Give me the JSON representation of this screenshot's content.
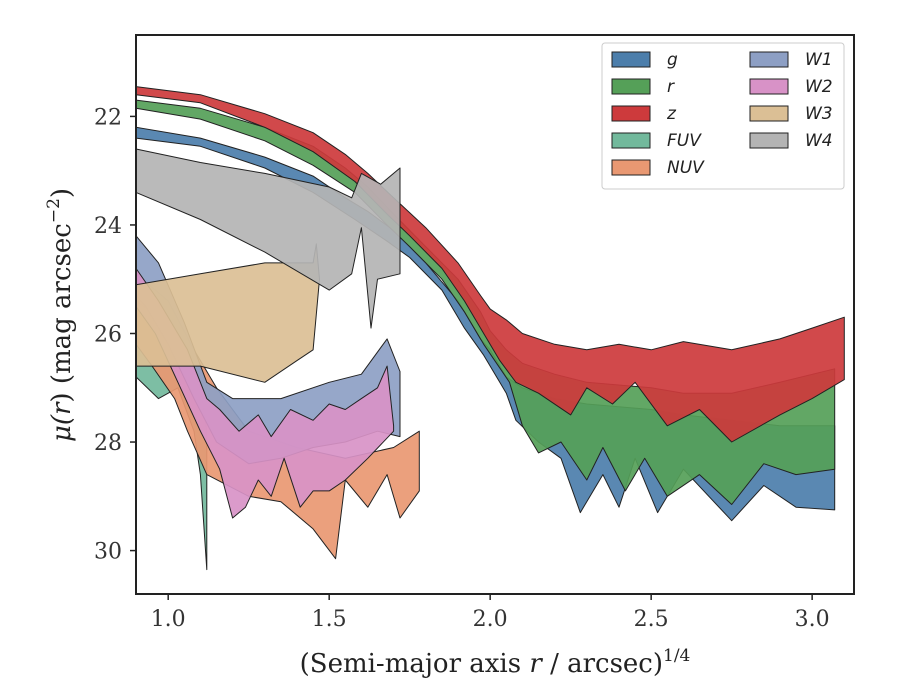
{
  "chart_data": {
    "type": "area",
    "xlabel": "(Semi-major axis",
    "xlabel_var": "r",
    "xlabel_unit": "/ arcsec)",
    "xlabel_power": "1/4",
    "ylabel": "μ(r) (mag arcsec⁻²)",
    "ylabel_parts": {
      "mu": "μ(",
      "var": "r",
      "rest": ") (mag arcsec",
      "sup": "−2",
      "close": ")"
    },
    "xlim": [
      0.9,
      3.13
    ],
    "ylim": [
      30.8,
      20.5
    ],
    "y_inverted": true,
    "xticks": [
      1.0,
      1.5,
      2.0,
      2.5,
      3.0
    ],
    "xtick_labels": [
      "1.0",
      "1.5",
      "2.0",
      "2.5",
      "3.0"
    ],
    "yticks": [
      22,
      24,
      26,
      28,
      30
    ],
    "ytick_labels": [
      "22",
      "24",
      "26",
      "28",
      "30"
    ],
    "grid": false,
    "legend_position": "top-right",
    "legend_columns": 2,
    "series": [
      {
        "name": "g",
        "color": "#4c7eab",
        "upper": [
          [
            0.9,
            22.2
          ],
          [
            1.1,
            22.4
          ],
          [
            1.3,
            22.75
          ],
          [
            1.45,
            23.1
          ],
          [
            1.55,
            23.5
          ],
          [
            1.62,
            23.75
          ],
          [
            1.7,
            24.1
          ],
          [
            1.8,
            24.7
          ],
          [
            1.9,
            25.4
          ],
          [
            1.97,
            26.1
          ],
          [
            2.0,
            26.3
          ],
          [
            2.05,
            26.8
          ],
          [
            2.1,
            27.0
          ],
          [
            2.2,
            27.2
          ],
          [
            2.3,
            27.3
          ],
          [
            2.5,
            27.4
          ],
          [
            2.6,
            27.5
          ],
          [
            2.75,
            27.6
          ],
          [
            2.9,
            27.7
          ],
          [
            3.07,
            27.7
          ]
        ],
        "lower": [
          [
            3.07,
            29.25
          ],
          [
            2.95,
            29.2
          ],
          [
            2.85,
            28.8
          ],
          [
            2.75,
            29.45
          ],
          [
            2.6,
            28.5
          ],
          [
            2.52,
            29.3
          ],
          [
            2.45,
            28.3
          ],
          [
            2.4,
            29.2
          ],
          [
            2.35,
            28.6
          ],
          [
            2.28,
            29.3
          ],
          [
            2.22,
            28.3
          ],
          [
            2.15,
            28.0
          ],
          [
            2.08,
            27.6
          ],
          [
            2.05,
            27.1
          ],
          [
            1.98,
            26.4
          ],
          [
            1.92,
            25.9
          ],
          [
            1.85,
            25.2
          ],
          [
            1.75,
            24.6
          ],
          [
            1.68,
            24.3
          ],
          [
            1.58,
            23.9
          ],
          [
            1.45,
            23.4
          ],
          [
            1.3,
            22.95
          ],
          [
            1.1,
            22.55
          ],
          [
            0.9,
            22.4
          ]
        ]
      },
      {
        "name": "r",
        "color": "#55a058",
        "upper": [
          [
            0.9,
            21.7
          ],
          [
            1.1,
            21.85
          ],
          [
            1.3,
            22.2
          ],
          [
            1.45,
            22.55
          ],
          [
            1.55,
            22.95
          ],
          [
            1.62,
            23.3
          ],
          [
            1.7,
            23.8
          ],
          [
            1.8,
            24.4
          ],
          [
            1.9,
            25.0
          ],
          [
            1.97,
            25.6
          ],
          [
            2.0,
            25.95
          ],
          [
            2.05,
            26.3
          ],
          [
            2.1,
            26.55
          ],
          [
            2.2,
            26.75
          ],
          [
            2.3,
            26.9
          ],
          [
            2.5,
            27.0
          ],
          [
            2.6,
            27.1
          ],
          [
            2.75,
            27.1
          ],
          [
            2.9,
            26.9
          ],
          [
            3.07,
            26.65
          ]
        ],
        "lower": [
          [
            3.07,
            28.5
          ],
          [
            2.95,
            28.6
          ],
          [
            2.85,
            28.4
          ],
          [
            2.75,
            29.15
          ],
          [
            2.65,
            28.6
          ],
          [
            2.55,
            29.0
          ],
          [
            2.48,
            28.3
          ],
          [
            2.42,
            28.9
          ],
          [
            2.35,
            28.1
          ],
          [
            2.3,
            28.7
          ],
          [
            2.22,
            28.0
          ],
          [
            2.15,
            28.2
          ],
          [
            2.1,
            27.7
          ],
          [
            2.06,
            26.9
          ],
          [
            1.98,
            26.2
          ],
          [
            1.92,
            25.6
          ],
          [
            1.85,
            25.0
          ],
          [
            1.75,
            24.4
          ],
          [
            1.68,
            24.0
          ],
          [
            1.58,
            23.4
          ],
          [
            1.45,
            22.9
          ],
          [
            1.3,
            22.45
          ],
          [
            1.1,
            22.05
          ],
          [
            0.9,
            21.85
          ]
        ]
      },
      {
        "name": "z",
        "color": "#cd3a3c",
        "upper": [
          [
            0.9,
            21.45
          ],
          [
            1.1,
            21.6
          ],
          [
            1.3,
            21.95
          ],
          [
            1.45,
            22.3
          ],
          [
            1.55,
            22.7
          ],
          [
            1.62,
            23.05
          ],
          [
            1.7,
            23.5
          ],
          [
            1.8,
            24.05
          ],
          [
            1.9,
            24.7
          ],
          [
            1.97,
            25.3
          ],
          [
            2.0,
            25.55
          ],
          [
            2.05,
            25.75
          ],
          [
            2.1,
            26.0
          ],
          [
            2.2,
            26.2
          ],
          [
            2.3,
            26.3
          ],
          [
            2.4,
            26.2
          ],
          [
            2.5,
            26.3
          ],
          [
            2.6,
            26.15
          ],
          [
            2.75,
            26.3
          ],
          [
            2.9,
            26.1
          ],
          [
            3.0,
            25.9
          ],
          [
            3.1,
            25.7
          ]
        ],
        "lower": [
          [
            3.1,
            26.85
          ],
          [
            3.0,
            27.2
          ],
          [
            2.9,
            27.5
          ],
          [
            2.75,
            28.0
          ],
          [
            2.65,
            27.4
          ],
          [
            2.55,
            27.7
          ],
          [
            2.45,
            26.9
          ],
          [
            2.38,
            27.3
          ],
          [
            2.3,
            27.0
          ],
          [
            2.25,
            27.5
          ],
          [
            2.15,
            27.1
          ],
          [
            2.08,
            26.9
          ],
          [
            2.03,
            26.5
          ],
          [
            1.98,
            26.0
          ],
          [
            1.92,
            25.4
          ],
          [
            1.85,
            24.8
          ],
          [
            1.75,
            24.2
          ],
          [
            1.68,
            23.8
          ],
          [
            1.58,
            23.2
          ],
          [
            1.45,
            22.65
          ],
          [
            1.3,
            22.2
          ],
          [
            1.1,
            21.75
          ],
          [
            0.9,
            21.6
          ]
        ]
      },
      {
        "name": "FUV",
        "color": "#72b99c",
        "upper": [
          [
            0.9,
            25.4
          ],
          [
            0.97,
            25.7
          ],
          [
            1.03,
            26.1
          ],
          [
            1.08,
            26.6
          ],
          [
            1.1,
            27.0
          ],
          [
            1.12,
            27.8
          ]
        ],
        "lower": [
          [
            1.12,
            30.35
          ],
          [
            1.1,
            28.6
          ],
          [
            1.08,
            27.8
          ],
          [
            1.03,
            27.0
          ],
          [
            0.97,
            27.2
          ],
          [
            0.9,
            26.8
          ]
        ]
      },
      {
        "name": "NUV",
        "color": "#e99872",
        "upper": [
          [
            0.9,
            24.9
          ],
          [
            1.0,
            25.4
          ],
          [
            1.08,
            26.3
          ],
          [
            1.15,
            27.0
          ],
          [
            1.25,
            27.8
          ],
          [
            1.4,
            28.1
          ],
          [
            1.55,
            28.3
          ],
          [
            1.7,
            28.1
          ],
          [
            1.78,
            27.8
          ]
        ],
        "lower": [
          [
            1.78,
            28.9
          ],
          [
            1.72,
            29.4
          ],
          [
            1.68,
            28.6
          ],
          [
            1.62,
            29.2
          ],
          [
            1.55,
            28.7
          ],
          [
            1.52,
            30.15
          ],
          [
            1.45,
            29.6
          ],
          [
            1.35,
            29.1
          ],
          [
            1.25,
            29.0
          ],
          [
            1.12,
            28.6
          ],
          [
            1.06,
            27.8
          ],
          [
            1.02,
            27.2
          ],
          [
            0.95,
            26.6
          ],
          [
            0.9,
            26.2
          ]
        ]
      },
      {
        "name": "W1",
        "color": "#8d9fc4",
        "upper": [
          [
            0.9,
            24.2
          ],
          [
            0.97,
            24.7
          ],
          [
            1.05,
            25.8
          ],
          [
            1.12,
            26.9
          ],
          [
            1.2,
            27.2
          ],
          [
            1.35,
            27.2
          ],
          [
            1.5,
            26.9
          ],
          [
            1.6,
            26.75
          ],
          [
            1.68,
            26.1
          ],
          [
            1.72,
            26.7
          ]
        ],
        "lower": [
          [
            1.72,
            27.9
          ],
          [
            1.65,
            27.8
          ],
          [
            1.55,
            28.0
          ],
          [
            1.45,
            28.1
          ],
          [
            1.35,
            28.3
          ],
          [
            1.25,
            28.4
          ],
          [
            1.15,
            28.0
          ],
          [
            1.08,
            27.2
          ],
          [
            1.0,
            26.2
          ],
          [
            0.93,
            25.5
          ],
          [
            0.9,
            25.3
          ]
        ]
      },
      {
        "name": "W2",
        "color": "#d892c7",
        "upper": [
          [
            0.9,
            24.8
          ],
          [
            0.97,
            25.4
          ],
          [
            1.06,
            26.3
          ],
          [
            1.12,
            27.2
          ],
          [
            1.16,
            27.4
          ],
          [
            1.22,
            27.8
          ],
          [
            1.28,
            27.5
          ],
          [
            1.32,
            27.9
          ],
          [
            1.38,
            27.4
          ],
          [
            1.45,
            27.6
          ],
          [
            1.5,
            27.3
          ],
          [
            1.55,
            27.4
          ],
          [
            1.6,
            27.2
          ],
          [
            1.65,
            27.0
          ],
          [
            1.68,
            26.6
          ],
          [
            1.7,
            27.7
          ]
        ],
        "lower": [
          [
            1.7,
            27.8
          ],
          [
            1.62,
            28.3
          ],
          [
            1.55,
            28.7
          ],
          [
            1.5,
            28.9
          ],
          [
            1.45,
            28.9
          ],
          [
            1.41,
            29.2
          ],
          [
            1.36,
            28.3
          ],
          [
            1.32,
            29.0
          ],
          [
            1.28,
            28.7
          ],
          [
            1.24,
            29.2
          ],
          [
            1.2,
            29.4
          ],
          [
            1.16,
            28.5
          ],
          [
            1.1,
            27.8
          ],
          [
            1.03,
            26.9
          ],
          [
            0.96,
            26.0
          ],
          [
            0.9,
            25.5
          ]
        ]
      },
      {
        "name": "W3",
        "color": "#dbbf95",
        "upper": [
          [
            0.9,
            25.1
          ],
          [
            1.1,
            24.9
          ],
          [
            1.3,
            24.7
          ],
          [
            1.45,
            24.7
          ],
          [
            1.46,
            24.35
          ],
          [
            1.47,
            25.0
          ]
        ],
        "lower": [
          [
            1.47,
            25.0
          ],
          [
            1.45,
            26.3
          ],
          [
            1.4,
            26.5
          ],
          [
            1.3,
            26.9
          ],
          [
            1.1,
            26.6
          ],
          [
            0.9,
            26.6
          ]
        ]
      },
      {
        "name": "W4",
        "color": "#b4b4b4",
        "upper": [
          [
            0.9,
            22.6
          ],
          [
            1.1,
            22.85
          ],
          [
            1.3,
            23.05
          ],
          [
            1.5,
            23.3
          ],
          [
            1.57,
            23.5
          ],
          [
            1.6,
            23.05
          ],
          [
            1.66,
            23.25
          ],
          [
            1.72,
            22.95
          ]
        ],
        "lower": [
          [
            1.72,
            24.9
          ],
          [
            1.65,
            25.0
          ],
          [
            1.63,
            25.9
          ],
          [
            1.6,
            24.05
          ],
          [
            1.57,
            24.9
          ],
          [
            1.5,
            25.2
          ],
          [
            1.3,
            24.5
          ],
          [
            1.1,
            23.9
          ],
          [
            0.9,
            23.4
          ]
        ]
      }
    ]
  }
}
